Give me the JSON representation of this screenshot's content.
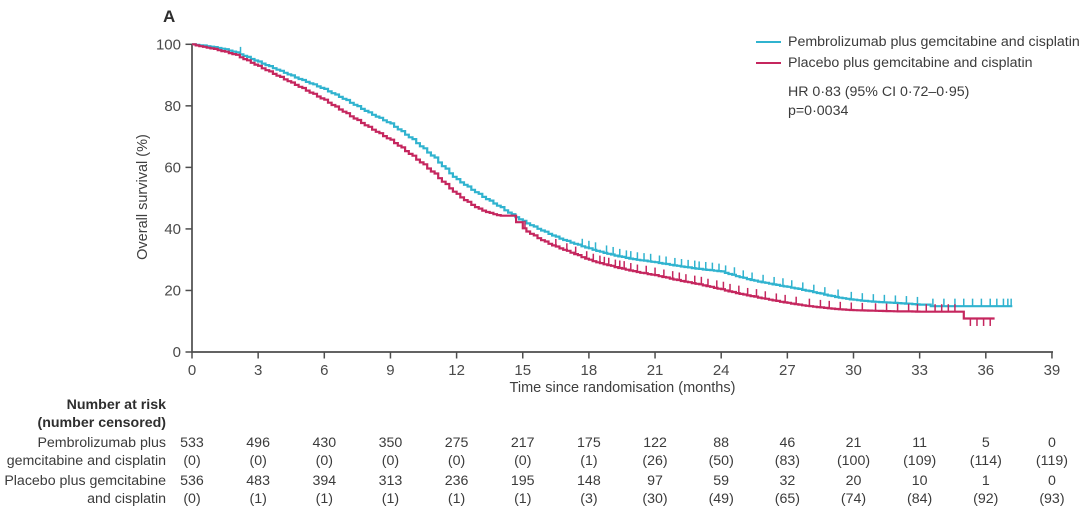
{
  "panel_label": "A",
  "chart_data": {
    "type": "line",
    "subtype": "kaplan-meier-step",
    "x_axis": {
      "title": "Time since randomisation (months)",
      "ticks": [
        0,
        3,
        6,
        9,
        12,
        15,
        18,
        21,
        24,
        27,
        30,
        33,
        36,
        39
      ],
      "range": [
        0,
        39
      ]
    },
    "y_axis": {
      "title": "Overall survival (%)",
      "ticks": [
        0,
        20,
        40,
        60,
        80,
        100
      ],
      "range": [
        0,
        100
      ]
    },
    "annotation": {
      "hr": "HR 0·83 (95% CI 0·72–0·95)",
      "p": "p=0·0034"
    },
    "series": [
      {
        "name": "Pembrolizumab plus gemcitabine and cisplatin",
        "color": "#30b3cf",
        "points": [
          [
            0,
            100
          ],
          [
            0.5,
            99.6
          ],
          [
            1,
            99.1
          ],
          [
            1.5,
            98.4
          ],
          [
            2,
            97.4
          ],
          [
            2.5,
            95.9
          ],
          [
            3,
            94.4
          ],
          [
            3.5,
            92.9
          ],
          [
            4,
            91.4
          ],
          [
            4.5,
            89.9
          ],
          [
            5,
            88.4
          ],
          [
            5.5,
            87.0
          ],
          [
            6,
            85.5
          ],
          [
            6.5,
            83.7
          ],
          [
            7,
            81.9
          ],
          [
            7.5,
            79.9
          ],
          [
            8,
            77.9
          ],
          [
            8.5,
            76.1
          ],
          [
            9,
            74.3
          ],
          [
            9.5,
            71.8
          ],
          [
            10,
            69.2
          ],
          [
            10.5,
            66.2
          ],
          [
            11,
            63.2
          ],
          [
            11.5,
            59.6
          ],
          [
            12,
            56.2
          ],
          [
            12.5,
            53.8
          ],
          [
            13,
            51.4
          ],
          [
            13.5,
            49.2
          ],
          [
            14,
            47.1
          ],
          [
            14.5,
            44.8
          ],
          [
            15,
            42.6
          ],
          [
            15.5,
            40.8
          ],
          [
            16,
            39.1
          ],
          [
            16.5,
            37.5
          ],
          [
            17,
            36.1
          ],
          [
            17.5,
            34.9
          ],
          [
            18,
            33.7
          ],
          [
            18.5,
            32.6
          ],
          [
            19,
            31.7
          ],
          [
            19.5,
            30.9
          ],
          [
            20,
            30.2
          ],
          [
            20.5,
            29.7
          ],
          [
            21,
            29.2
          ],
          [
            21.5,
            28.6
          ],
          [
            22,
            28.0
          ],
          [
            22.5,
            27.5
          ],
          [
            23,
            27.0
          ],
          [
            23.5,
            26.6
          ],
          [
            24,
            26.2
          ],
          [
            24.5,
            25.1
          ],
          [
            25,
            24.1
          ],
          [
            25.5,
            23.2
          ],
          [
            26,
            22.5
          ],
          [
            26.5,
            21.8
          ],
          [
            27,
            21.2
          ],
          [
            27.5,
            20.5
          ],
          [
            28,
            19.8
          ],
          [
            28.5,
            19.0
          ],
          [
            29,
            18.2
          ],
          [
            29.5,
            17.5
          ],
          [
            30,
            17.0
          ],
          [
            30.5,
            16.6
          ],
          [
            31,
            16.3
          ],
          [
            31.5,
            16.1
          ],
          [
            32,
            15.9
          ],
          [
            32.5,
            15.7
          ],
          [
            33,
            15.4
          ],
          [
            33.3,
            15.4
          ],
          [
            33.5,
            14.9
          ],
          [
            37.2,
            14.9
          ]
        ],
        "censor_months": [
          2.2,
          17.7,
          18.0,
          18.3,
          18.8,
          19.1,
          19.4,
          19.7,
          19.9,
          20.2,
          20.5,
          20.8,
          21.2,
          21.5,
          21.9,
          22.2,
          22.5,
          22.8,
          23.0,
          23.3,
          23.6,
          23.9,
          24.2,
          24.6,
          25.0,
          25.4,
          25.9,
          26.4,
          26.8,
          27.2,
          27.7,
          28.2,
          28.7,
          29.3,
          29.9,
          30.4,
          30.9,
          31.4,
          31.9,
          32.4,
          32.9,
          33.6,
          34.1,
          34.6,
          35.0,
          35.4,
          35.8,
          36.2,
          36.5,
          36.8,
          37.0,
          37.15
        ],
        "censor_down_months": []
      },
      {
        "name": "Placebo plus gemcitabine and cisplatin",
        "color": "#c5265e",
        "points": [
          [
            0,
            100
          ],
          [
            0.5,
            99.2
          ],
          [
            1,
            98.5
          ],
          [
            1.5,
            97.6
          ],
          [
            2,
            96.6
          ],
          [
            2.5,
            94.8
          ],
          [
            3,
            93.0
          ],
          [
            3.5,
            91.2
          ],
          [
            4,
            89.4
          ],
          [
            4.5,
            87.6
          ],
          [
            5,
            85.8
          ],
          [
            5.5,
            83.9
          ],
          [
            6,
            82.0
          ],
          [
            6.5,
            79.8
          ],
          [
            7,
            77.6
          ],
          [
            7.5,
            75.4
          ],
          [
            8,
            73.2
          ],
          [
            8.5,
            71.1
          ],
          [
            9,
            69.0
          ],
          [
            9.5,
            66.5
          ],
          [
            10,
            63.8
          ],
          [
            10.5,
            61.0
          ],
          [
            11,
            58.0
          ],
          [
            11.5,
            54.6
          ],
          [
            12,
            51.4
          ],
          [
            12.5,
            48.8
          ],
          [
            13,
            46.6
          ],
          [
            13.5,
            45.2
          ],
          [
            14,
            44.3
          ],
          [
            14.4,
            44.3
          ],
          [
            14.7,
            42.2
          ],
          [
            15,
            40.2
          ],
          [
            15.5,
            37.9
          ],
          [
            16,
            35.9
          ],
          [
            16.5,
            34.3
          ],
          [
            17,
            32.9
          ],
          [
            17.5,
            31.5
          ],
          [
            18,
            30.0
          ],
          [
            18.5,
            28.9
          ],
          [
            19,
            28.0
          ],
          [
            19.5,
            27.1
          ],
          [
            20,
            26.3
          ],
          [
            20.5,
            25.6
          ],
          [
            21,
            25.0
          ],
          [
            21.5,
            24.2
          ],
          [
            22,
            23.4
          ],
          [
            22.5,
            22.7
          ],
          [
            23,
            22.0
          ],
          [
            23.5,
            21.2
          ],
          [
            24,
            20.4
          ],
          [
            24.5,
            19.5
          ],
          [
            25,
            18.7
          ],
          [
            25.5,
            18.0
          ],
          [
            26,
            17.3
          ],
          [
            26.5,
            16.6
          ],
          [
            27,
            16.0
          ],
          [
            27.5,
            15.4
          ],
          [
            28,
            14.9
          ],
          [
            28.5,
            14.5
          ],
          [
            29,
            14.1
          ],
          [
            29.5,
            13.8
          ],
          [
            30,
            13.6
          ],
          [
            30.5,
            13.5
          ],
          [
            31,
            13.4
          ],
          [
            31.5,
            13.3
          ],
          [
            32,
            13.2
          ],
          [
            32.5,
            13.2
          ],
          [
            33,
            13.1
          ],
          [
            34.9,
            13.1
          ],
          [
            35,
            10.9
          ],
          [
            36.4,
            10.9
          ]
        ],
        "censor_months": [
          15.1,
          16.5,
          17.0,
          17.4,
          17.9,
          18.2,
          18.5,
          18.7,
          18.9,
          19.2,
          19.4,
          19.6,
          19.9,
          20.2,
          20.6,
          21.0,
          21.4,
          21.8,
          22.1,
          22.4,
          22.8,
          23.1,
          23.4,
          23.8,
          24.1,
          24.4,
          24.8,
          25.2,
          25.6,
          26.0,
          26.5,
          26.9,
          27.4,
          28.0,
          28.5,
          28.9,
          29.4,
          29.9,
          30.4,
          31.0,
          31.5,
          32.0,
          32.5,
          32.9,
          33.3,
          33.7,
          34.0,
          34.3,
          34.6
        ],
        "censor_down_months": [
          35.3,
          35.6,
          35.9,
          36.2
        ]
      }
    ]
  },
  "risk_table": {
    "header_line1": "Number at risk",
    "header_line2": "(number censored)",
    "rows": [
      {
        "label_line1": "Pembrolizumab plus",
        "label_line2": "gemcitabine and cisplatin",
        "at_risk": [
          "533",
          "496",
          "430",
          "350",
          "275",
          "217",
          "175",
          "122",
          "88",
          "46",
          "21",
          "11",
          "5",
          "0"
        ],
        "censored": [
          "(0)",
          "(0)",
          "(0)",
          "(0)",
          "(0)",
          "(0)",
          "(1)",
          "(26)",
          "(50)",
          "(83)",
          "(100)",
          "(109)",
          "(114)",
          "(119)"
        ]
      },
      {
        "label_line1": "Placebo plus gemcitabine",
        "label_line2": "and cisplatin",
        "at_risk": [
          "536",
          "483",
          "394",
          "313",
          "236",
          "195",
          "148",
          "97",
          "59",
          "32",
          "20",
          "10",
          "1",
          "0"
        ],
        "censored": [
          "(0)",
          "(1)",
          "(1)",
          "(1)",
          "(1)",
          "(1)",
          "(3)",
          "(30)",
          "(49)",
          "(65)",
          "(74)",
          "(84)",
          "(92)",
          "(93)"
        ]
      }
    ]
  }
}
